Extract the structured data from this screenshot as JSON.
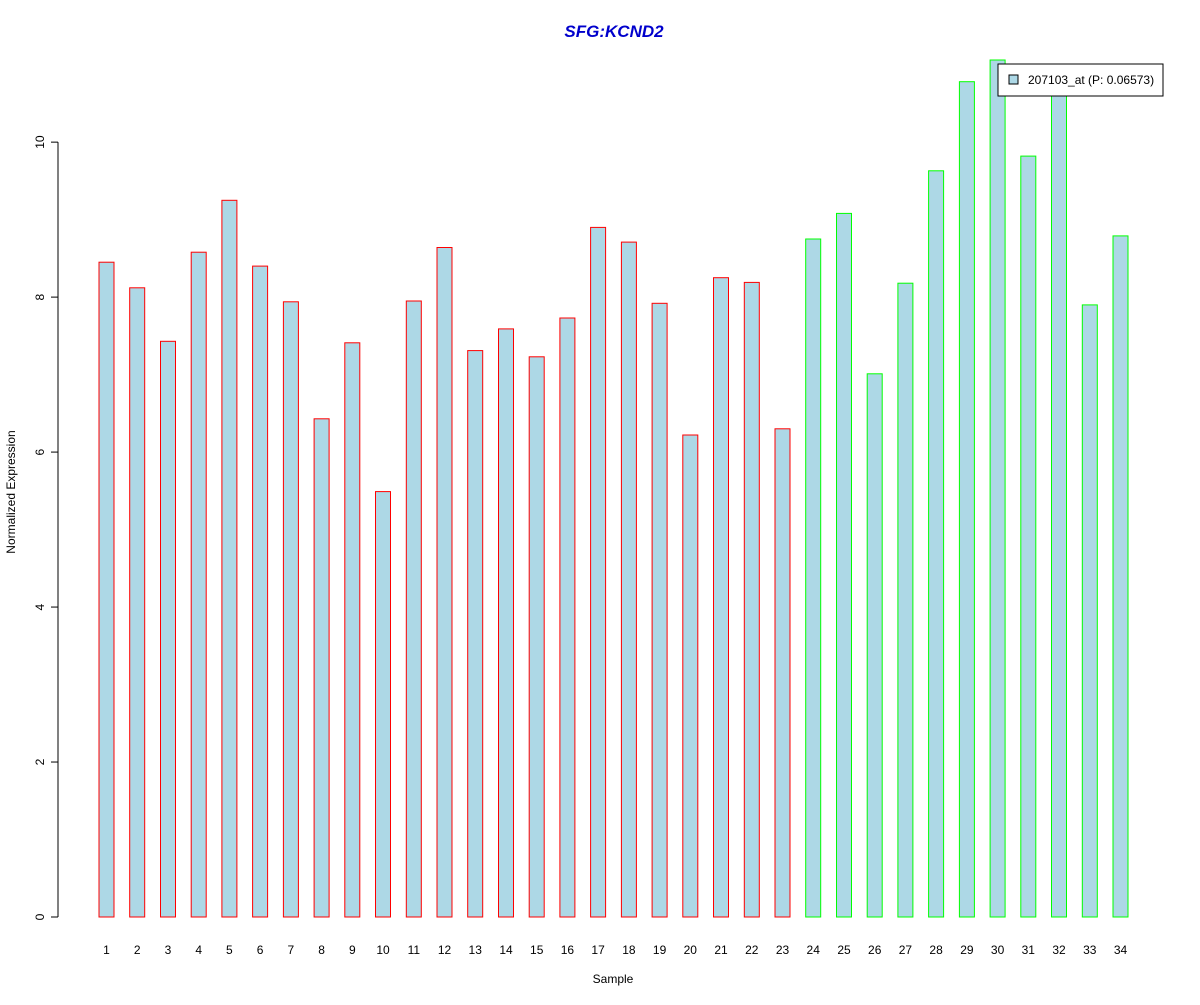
{
  "chart_data": {
    "type": "bar",
    "title": "SFG:KCND2",
    "xlabel": "Sample",
    "ylabel": "Normalized Expression",
    "categories": [
      "1",
      "2",
      "3",
      "4",
      "5",
      "6",
      "7",
      "8",
      "9",
      "10",
      "11",
      "12",
      "13",
      "14",
      "15",
      "16",
      "17",
      "18",
      "19",
      "20",
      "21",
      "22",
      "23",
      "24",
      "25",
      "26",
      "27",
      "28",
      "29",
      "30",
      "31",
      "32",
      "33",
      "34"
    ],
    "series": [
      {
        "name": "207103_at (P: 0.06573)",
        "values": [
          8.45,
          8.12,
          7.43,
          8.58,
          9.25,
          8.4,
          7.94,
          6.43,
          7.41,
          5.49,
          7.95,
          8.64,
          7.31,
          7.59,
          7.23,
          7.73,
          8.9,
          8.71,
          7.92,
          6.22,
          8.25,
          8.19,
          6.3,
          8.75,
          9.08,
          7.01,
          8.18,
          9.63,
          10.78,
          11.06,
          9.82,
          10.65,
          7.9,
          8.79
        ],
        "fill": "#add8e6"
      }
    ],
    "group_border_colors": [
      "#ff0000",
      "#ff0000",
      "#ff0000",
      "#ff0000",
      "#ff0000",
      "#ff0000",
      "#ff0000",
      "#ff0000",
      "#ff0000",
      "#ff0000",
      "#ff0000",
      "#ff0000",
      "#ff0000",
      "#ff0000",
      "#ff0000",
      "#ff0000",
      "#ff0000",
      "#ff0000",
      "#ff0000",
      "#ff0000",
      "#ff0000",
      "#ff0000",
      "#ff0000",
      "#00ff00",
      "#00ff00",
      "#00ff00",
      "#00ff00",
      "#00ff00",
      "#00ff00",
      "#00ff00",
      "#00ff00",
      "#00ff00",
      "#00ff00",
      "#00ff00"
    ],
    "yticks": [
      0,
      2,
      4,
      6,
      8,
      10
    ],
    "ytick_labels": [
      "0",
      "2",
      "4",
      "6",
      "8",
      "10"
    ],
    "ylim": [
      0,
      11.06
    ],
    "legend": {
      "label": "207103_at (P: 0.06573)",
      "position": "top-right"
    },
    "title_color": "#0000cc",
    "grid": false
  }
}
